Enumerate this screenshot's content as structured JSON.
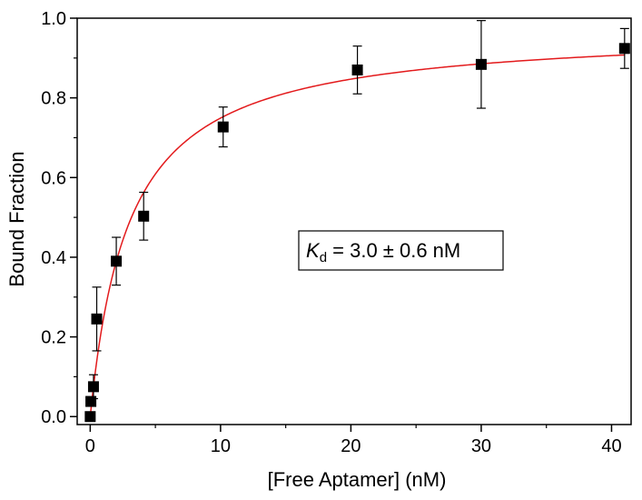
{
  "chart_data": {
    "type": "scatter",
    "xlabel": "[Free Aptamer] (nM)",
    "ylabel": "Bound Fraction",
    "xlim": [
      -1,
      41.5
    ],
    "ylim": [
      -0.02,
      1.0
    ],
    "x_ticks": [
      "0",
      "10",
      "20",
      "30",
      "40"
    ],
    "x_tick_values": [
      0,
      10,
      20,
      30,
      40
    ],
    "y_ticks": [
      "0.0",
      "0.2",
      "0.4",
      "0.6",
      "0.8",
      "1.0"
    ],
    "y_tick_values": [
      0.0,
      0.2,
      0.4,
      0.6,
      0.8,
      1.0
    ],
    "grid": false,
    "series": [
      {
        "marker": "square",
        "color": "#000000",
        "points": [
          {
            "x": 0.0,
            "y": 0.0,
            "err": 0.0
          },
          {
            "x": 0.05,
            "y": 0.038,
            "err": 0.0
          },
          {
            "x": 0.25,
            "y": 0.075,
            "err": 0.03
          },
          {
            "x": 0.5,
            "y": 0.245,
            "err": 0.08
          },
          {
            "x": 2.0,
            "y": 0.39,
            "err": 0.06
          },
          {
            "x": 4.1,
            "y": 0.503,
            "err": 0.06
          },
          {
            "x": 10.2,
            "y": 0.727,
            "err": 0.05
          },
          {
            "x": 20.5,
            "y": 0.87,
            "err": 0.06
          },
          {
            "x": 30.0,
            "y": 0.884,
            "err": 0.11
          },
          {
            "x": 41.0,
            "y": 0.924,
            "err": 0.05
          }
        ]
      },
      {
        "type": "line",
        "color": "#e31a1c",
        "fit": {
          "model": "hyperbolic",
          "Bmax": 0.974,
          "Kd": 3.0
        },
        "x_range": [
          0,
          41
        ]
      }
    ],
    "annotation": {
      "symbol": "K",
      "subscript": "d",
      "text": " = 3.0 ± 0.6 nM"
    }
  }
}
